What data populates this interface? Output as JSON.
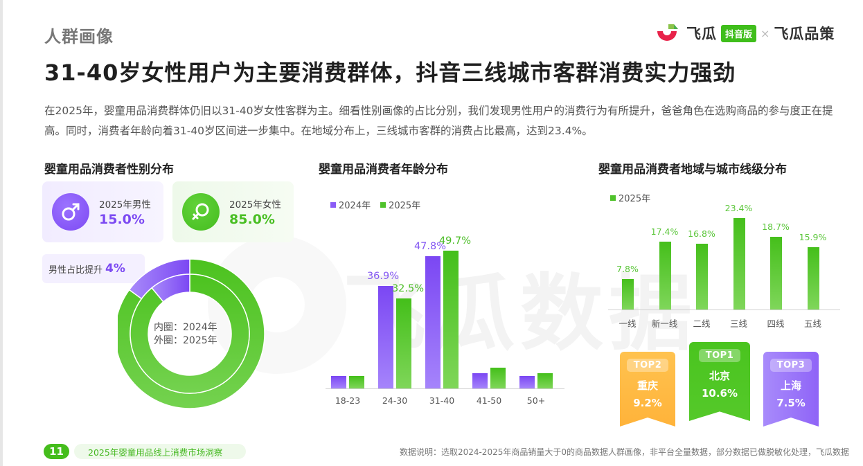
{
  "page": {
    "section_label": "人群画像",
    "headline": "31-40岁女性用户为主要消费群体，抖音三线城市客群消费实力强劲",
    "intro": "在2025年，婴童用品消费群体仍旧以31-40岁女性客群为主。细看性别画像的占比分别，我们发现男性用户的消费行为有所提升，爸爸角色在选购商品的参与度正在提高。同时，消费者年龄向着31-40岁区间进一步集中。在地域分布上，三线城市客群的消费占比最高，达到23.4%。"
  },
  "brand": {
    "logo_icon": "feigua-logo-icon",
    "name": "飞瓜",
    "badge": "抖音版",
    "separator": "×",
    "partner": "飞瓜品策",
    "colors": {
      "red": "#e8234a",
      "green": "#8bc34a",
      "badge": "#3fbe1b"
    }
  },
  "gender": {
    "title": "婴童用品消费者性别分布",
    "male": {
      "icon": "male-symbol-icon",
      "label": "2025年男性",
      "value": "15.0%"
    },
    "female": {
      "icon": "female-symbol-icon",
      "label": "2025年女性",
      "value": "85.0%"
    },
    "rise": {
      "label": "男性占比提升",
      "value": "4%"
    },
    "donut": {
      "inner_label": "内圈：2024年",
      "outer_label": "外圈：2025年"
    }
  },
  "age": {
    "title": "婴童用品消费者年龄分布",
    "legend": [
      "2024年",
      "2025年"
    ]
  },
  "city": {
    "title": "婴童用品消费者地域与城市线级分布",
    "legend": [
      "2025年"
    ],
    "top": [
      {
        "rank": "TOP2",
        "city": "重庆",
        "value": "9.2%",
        "color": "orange"
      },
      {
        "rank": "TOP1",
        "city": "北京",
        "value": "10.6%",
        "color": "green"
      },
      {
        "rank": "TOP3",
        "city": "上海",
        "value": "7.5%",
        "color": "purple"
      }
    ]
  },
  "watermark": "飞瓜数据",
  "footer": {
    "page_number": "11",
    "report_title": "2025年婴童用品线上消费市场洞察",
    "note": "数据说明：选取2024-2025年商品销量大于0的商品数据人群画像，非平台全量数据，部分数据已做脱敏化处理，飞瓜数据"
  },
  "colors": {
    "purple": "#7c4af2",
    "green": "#48be22",
    "orange": "#ffb83f"
  },
  "chart_data": [
    {
      "type": "pie",
      "title": "婴童用品消费者性别分布",
      "series": [
        {
          "name": "2024年 (inner)",
          "labels": [
            "男性",
            "女性"
          ],
          "values": [
            11.0,
            89.0
          ]
        },
        {
          "name": "2025年 (outer)",
          "labels": [
            "男性",
            "女性"
          ],
          "values": [
            15.0,
            85.0
          ]
        }
      ],
      "annotations": [
        "男性占比提升 4%"
      ]
    },
    {
      "type": "bar",
      "title": "婴童用品消费者年龄分布",
      "categories": [
        "18-23",
        "24-30",
        "31-40",
        "41-50",
        "50+"
      ],
      "series": [
        {
          "name": "2024年",
          "values": [
            4.5,
            36.9,
            47.8,
            5.5,
            4.5
          ],
          "labels": [
            "",
            "36.9%",
            "47.8%",
            "",
            ""
          ]
        },
        {
          "name": "2025年",
          "values": [
            4.5,
            32.5,
            49.7,
            7.5,
            5.5
          ],
          "labels": [
            "",
            "32.5%",
            "49.7%",
            "",
            ""
          ]
        }
      ],
      "xlabel": "",
      "ylabel": "",
      "legend_position": "top-left",
      "grid": false
    },
    {
      "type": "bar",
      "title": "婴童用品消费者地域与城市线级分布",
      "categories": [
        "一线",
        "新一线",
        "二线",
        "三线",
        "四线",
        "五线"
      ],
      "series": [
        {
          "name": "2025年",
          "values": [
            7.8,
            17.4,
            16.8,
            23.4,
            18.7,
            15.9
          ]
        }
      ],
      "xlabel": "",
      "ylabel": "",
      "legend_position": "top-left",
      "grid": false
    }
  ]
}
